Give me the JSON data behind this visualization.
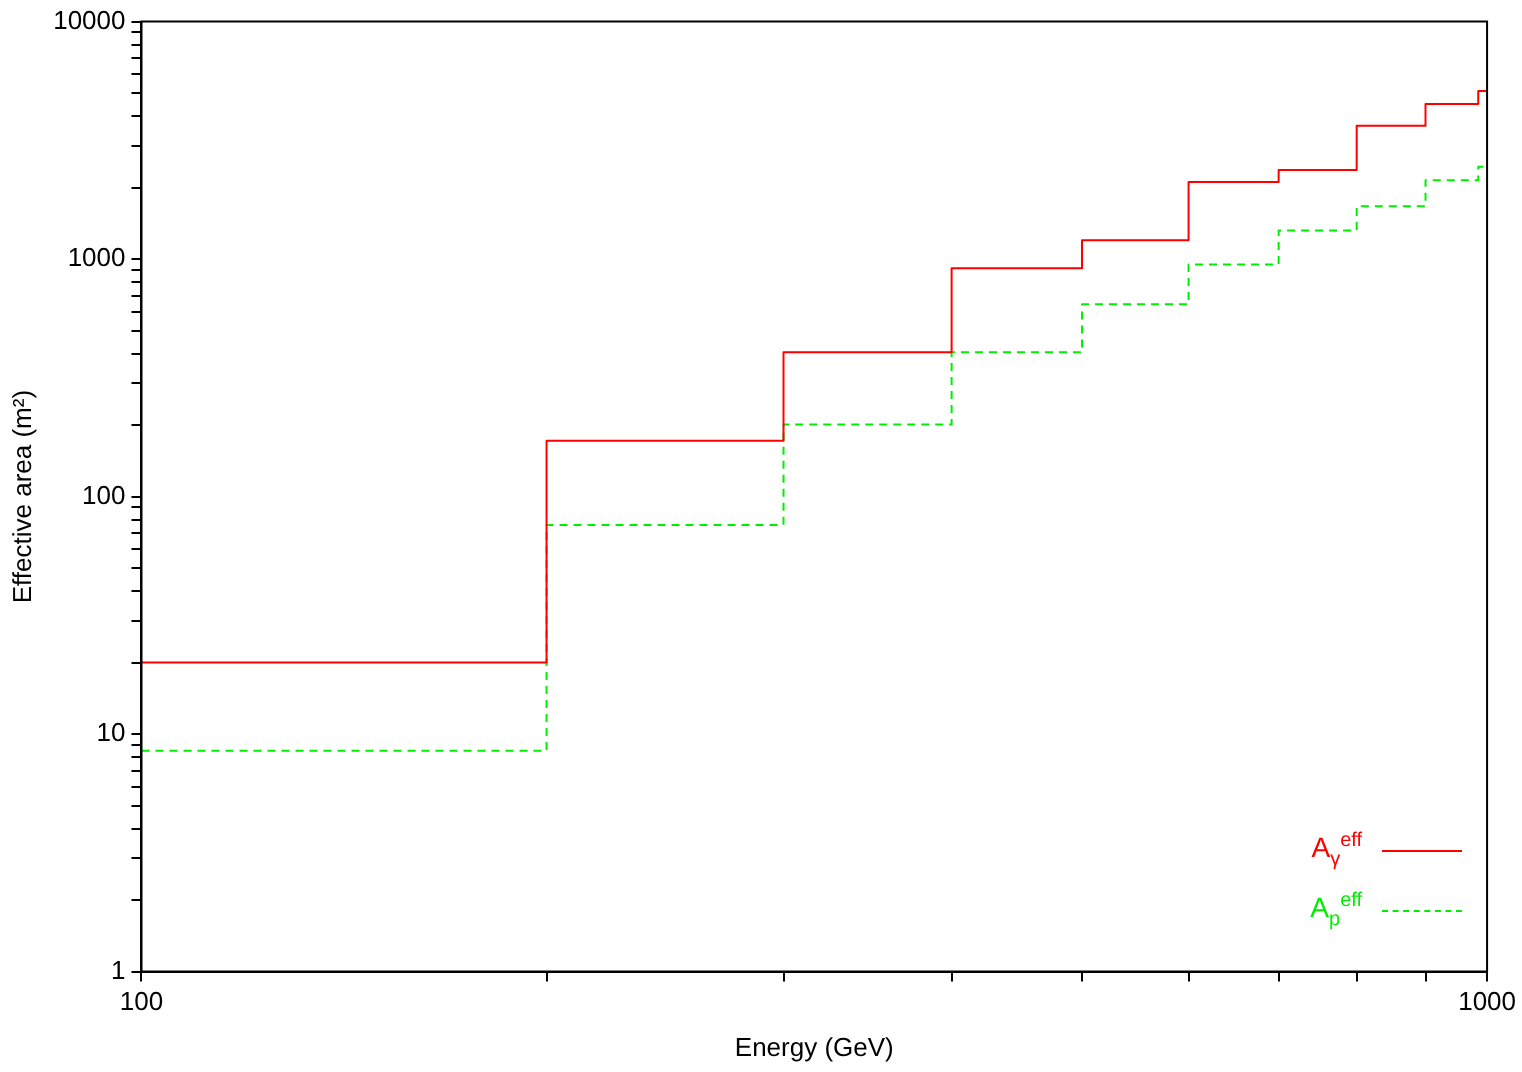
{
  "chart_data": {
    "type": "step",
    "xlabel": "Energy (GeV)",
    "ylabel": "Effective area (m²)",
    "log": "xy",
    "grid": false,
    "legend": "bottom right",
    "xlim": [
      100,
      1000
    ],
    "ylim": [
      1,
      10000
    ],
    "xticks": [
      100,
      {
        "value": 200,
        "label": null
      },
      {
        "value": 300,
        "label": null
      },
      {
        "value": 400,
        "label": null
      },
      {
        "value": 500,
        "label": null
      },
      {
        "value": 600,
        "label": null
      },
      {
        "value": 700,
        "label": null
      },
      {
        "value": 800,
        "label": null
      },
      {
        "value": 900,
        "label": null
      },
      1000
    ],
    "yticks": [
      1,
      {
        "value": 2,
        "label": null
      },
      {
        "value": 3,
        "label": null
      },
      {
        "value": 4,
        "label": null
      },
      {
        "value": 5,
        "label": null
      },
      {
        "value": 6,
        "label": null
      },
      {
        "value": 7,
        "label": null
      },
      {
        "value": 8,
        "label": null
      },
      {
        "value": 9,
        "label": null
      },
      10,
      {
        "value": 20,
        "label": null
      },
      {
        "value": 30,
        "label": null
      },
      {
        "value": 40,
        "label": null
      },
      {
        "value": 50,
        "label": null
      },
      {
        "value": 60,
        "label": null
      },
      {
        "value": 70,
        "label": null
      },
      {
        "value": 80,
        "label": null
      },
      {
        "value": 90,
        "label": null
      },
      100,
      {
        "value": 200,
        "label": null
      },
      {
        "value": 300,
        "label": null
      },
      {
        "value": 400,
        "label": null
      },
      {
        "value": 500,
        "label": null
      },
      {
        "value": 600,
        "label": null
      },
      {
        "value": 700,
        "label": null
      },
      {
        "value": 800,
        "label": null
      },
      {
        "value": 900,
        "label": null
      },
      1000,
      {
        "value": 2000,
        "label": null
      },
      {
        "value": 3000,
        "label": null
      },
      {
        "value": 4000,
        "label": null
      },
      {
        "value": 5000,
        "label": null
      },
      {
        "value": 6000,
        "label": null
      },
      {
        "value": 7000,
        "label": null
      },
      {
        "value": 8000,
        "label": null
      },
      {
        "value": 9000,
        "label": null
      },
      10000
    ],
    "x": [
      100,
      200,
      300,
      400,
      500,
      600,
      700,
      800,
      900,
      985,
      1000
    ],
    "series": [
      {
        "name": "A$_{γ}$$^{eff}$",
        "color": "#ff0000",
        "line_style": "solid",
        "values": [
          20,
          20,
          172,
          405,
          915,
          1200,
          2110,
          2370,
          3640,
          4500,
          5100
        ]
      },
      {
        "name": "A$_{p}$$^{eff}$",
        "color": "#00ee00",
        "line_style": "dashed",
        "values": [
          8.5,
          8.5,
          76,
          201,
          405,
          645,
          950,
          1320,
          1670,
          2150,
          2450
        ]
      }
    ]
  }
}
